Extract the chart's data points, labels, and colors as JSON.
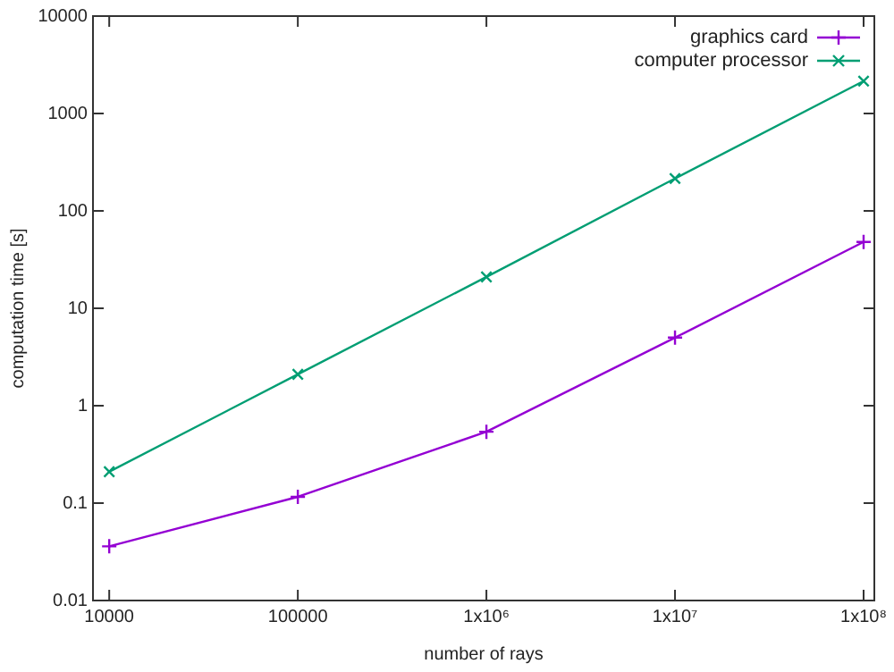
{
  "chart_data": {
    "type": "line",
    "xlabel": "number of rays",
    "ylabel": "computation time [s]",
    "x": [
      10000,
      100000,
      1000000,
      10000000,
      100000000
    ],
    "series": [
      {
        "name": "graphics card",
        "color": "#9400d3",
        "values": [
          0.036,
          0.116,
          0.54,
          5.0,
          48
        ],
        "marker": "cross"
      },
      {
        "name": "computer processor",
        "color": "#009e73",
        "values": [
          0.21,
          2.1,
          21,
          215,
          2150
        ],
        "marker": "cross"
      }
    ],
    "log": "xy",
    "xlim": [
      8200,
      114000000
    ],
    "ylim": [
      0.01,
      10000
    ],
    "xticks": [
      10000,
      100000,
      {
        "value": 1000000,
        "label": "1x10⁶"
      },
      {
        "value": 10000000,
        "label": "1x10⁷"
      },
      {
        "value": 100000000,
        "label": "1x10⁸"
      }
    ],
    "yticks": [
      0.01,
      0.1,
      1,
      10,
      100,
      1000,
      10000
    ],
    "grid": false,
    "legend": "top right",
    "line_style": "solid"
  }
}
